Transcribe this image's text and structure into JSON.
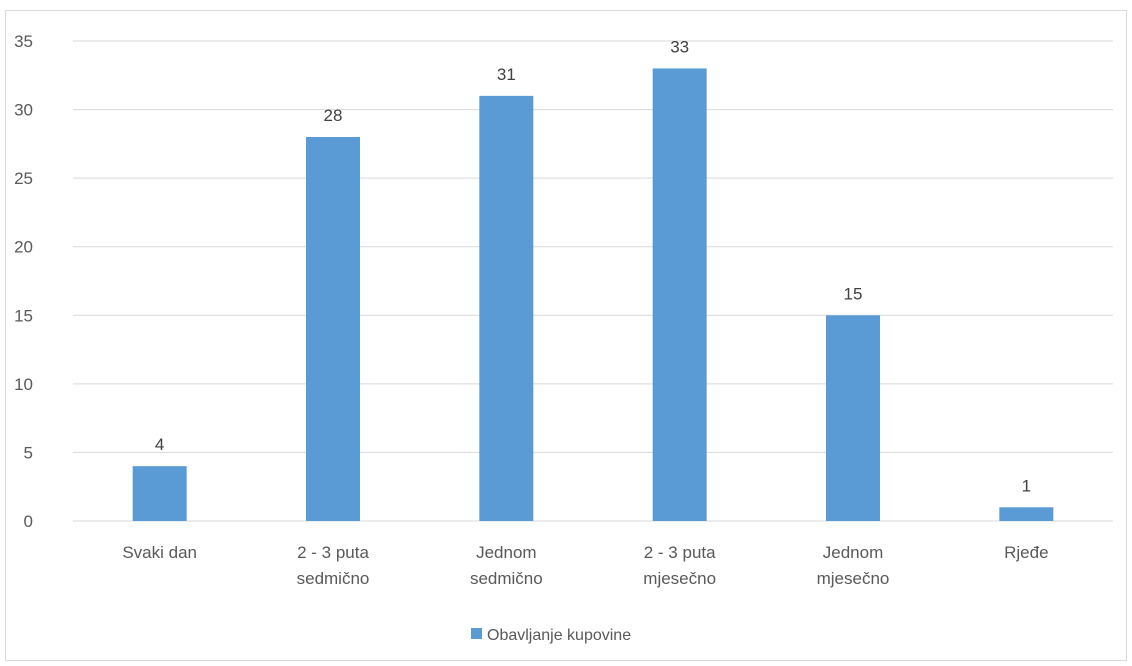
{
  "chart_data": {
    "type": "bar",
    "categories": [
      [
        "Svaki dan"
      ],
      [
        "2 - 3 puta",
        "sedmično"
      ],
      [
        "Jednom",
        "sedmično"
      ],
      [
        "2 - 3 puta",
        "mjesečno"
      ],
      [
        "Jednom",
        "mjesečno"
      ],
      [
        "Rjeđe"
      ]
    ],
    "series": [
      {
        "name": "Obavljanje kupovine",
        "values": [
          4,
          28,
          31,
          33,
          15,
          1
        ],
        "color": "#5b9bd5"
      }
    ],
    "ylim": [
      0,
      35
    ],
    "yticks": [
      0,
      5,
      10,
      15,
      20,
      25,
      30,
      35
    ],
    "grid": true,
    "data_labels": true,
    "legend_position": "bottom",
    "colors": {
      "gridline": "#d9d9d9",
      "axis_text": "#595959",
      "frame": "#d9d9d9"
    }
  }
}
